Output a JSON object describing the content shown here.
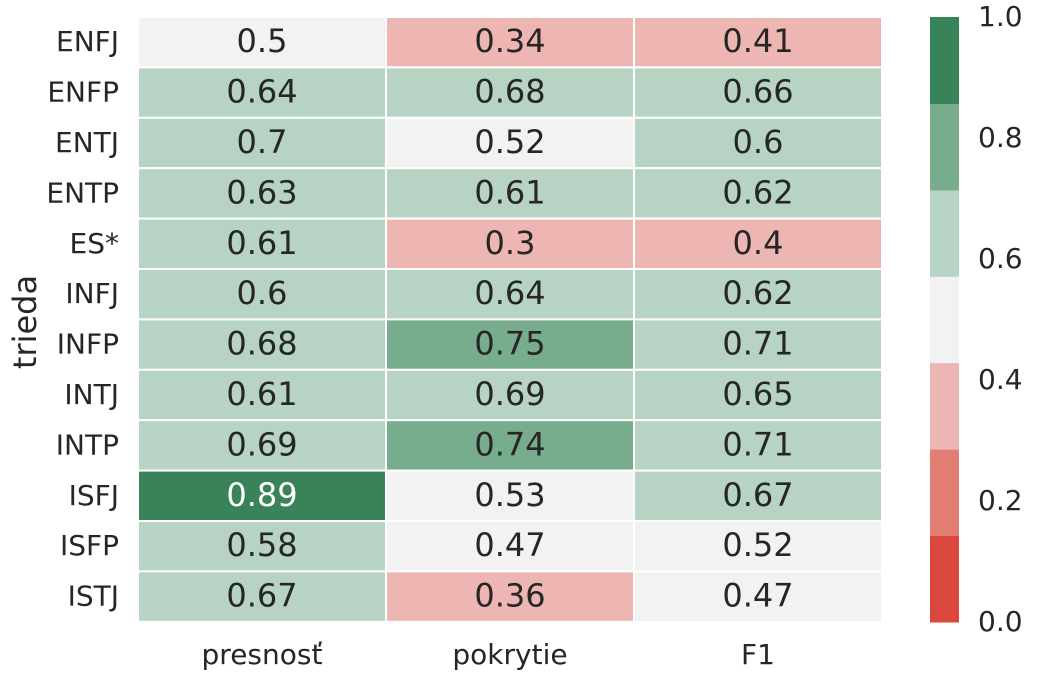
{
  "chart_data": {
    "type": "heatmap",
    "title": "",
    "xlabel": "",
    "ylabel": "trieda",
    "columns": [
      "presnosť",
      "pokrytie",
      "F1"
    ],
    "rows": [
      "ENFJ",
      "ENFP",
      "ENTJ",
      "ENTP",
      "ES*",
      "INFJ",
      "INFP",
      "INTJ",
      "INTP",
      "ISFJ",
      "ISFP",
      "ISTJ"
    ],
    "values": [
      [
        0.5,
        0.34,
        0.41
      ],
      [
        0.64,
        0.68,
        0.66
      ],
      [
        0.7,
        0.52,
        0.6
      ],
      [
        0.63,
        0.61,
        0.62
      ],
      [
        0.61,
        0.3,
        0.4
      ],
      [
        0.6,
        0.64,
        0.62
      ],
      [
        0.68,
        0.75,
        0.71
      ],
      [
        0.61,
        0.69,
        0.65
      ],
      [
        0.69,
        0.74,
        0.71
      ],
      [
        0.89,
        0.53,
        0.67
      ],
      [
        0.58,
        0.47,
        0.52
      ],
      [
        0.67,
        0.36,
        0.47
      ]
    ],
    "value_labels": [
      [
        "0.5",
        "0.34",
        "0.41"
      ],
      [
        "0.64",
        "0.68",
        "0.66"
      ],
      [
        "0.7",
        "0.52",
        "0.6"
      ],
      [
        "0.63",
        "0.61",
        "0.62"
      ],
      [
        "0.61",
        "0.3",
        "0.4"
      ],
      [
        "0.6",
        "0.64",
        "0.62"
      ],
      [
        "0.68",
        "0.75",
        "0.71"
      ],
      [
        "0.61",
        "0.69",
        "0.65"
      ],
      [
        "0.69",
        "0.74",
        "0.71"
      ],
      [
        "0.89",
        "0.53",
        "0.67"
      ],
      [
        "0.58",
        "0.47",
        "0.52"
      ],
      [
        "0.67",
        "0.36",
        "0.47"
      ]
    ],
    "color_range": [
      0.0,
      1.0
    ],
    "colorbar": {
      "ticks": [
        0.0,
        0.2,
        0.4,
        0.6,
        0.8,
        1.0
      ],
      "tick_labels": [
        "0.0",
        "0.2",
        "0.4",
        "0.6",
        "0.8",
        "1.0"
      ],
      "colors": [
        "#d9473d",
        "#e27d74",
        "#edb6b2",
        "#f2f2f2",
        "#b6d3c3",
        "#77ac8d",
        "#398358"
      ]
    },
    "legend": "colorbar-right",
    "grid": false
  }
}
